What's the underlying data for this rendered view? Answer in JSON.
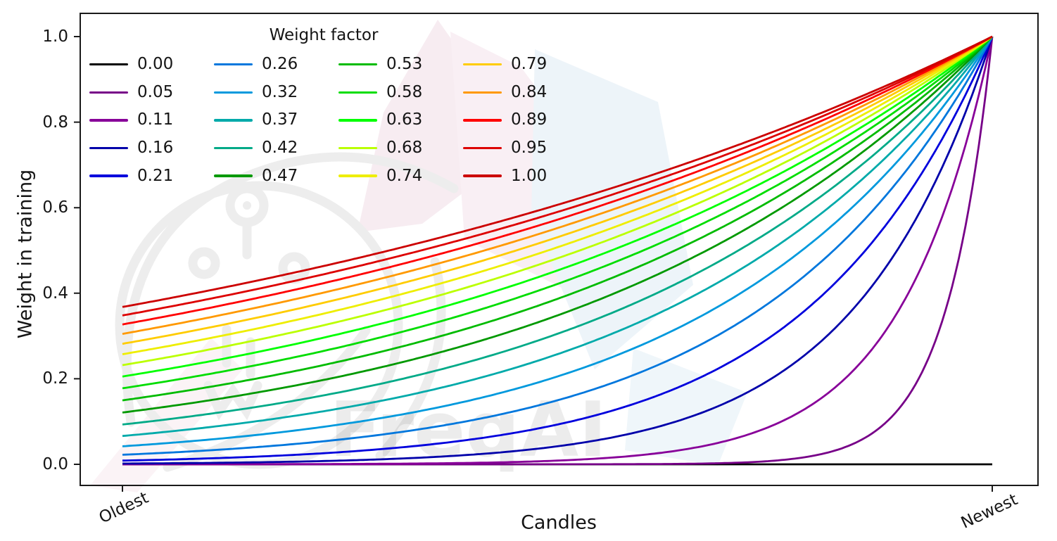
{
  "watermark": {
    "text": "FreqAI"
  },
  "chart_data": {
    "type": "line",
    "title": "",
    "legend_title": "Weight factor",
    "legend_position": "upper left",
    "legend_columns": 4,
    "grid": false,
    "colormap": "nipy_spectral",
    "xlabel": "Candles",
    "ylabel": "Weight in training",
    "x_tick_labels": [
      "Oldest",
      "Newest"
    ],
    "y_ticks": [
      0.0,
      0.2,
      0.4,
      0.6,
      0.8,
      1.0
    ],
    "ylim": [
      -0.05,
      1.05
    ],
    "x_range": [
      0,
      1
    ],
    "formula": "weight = exp(-(1 - x) / factor), x from 0 at Oldest candle to 1 at Newest candle",
    "x_samples": [
      0,
      0.25,
      0.5,
      0.75,
      1
    ],
    "series": [
      {
        "label": "0.00",
        "factor": 0.0,
        "color": "#000000",
        "y_samples": [
          0,
          0,
          0,
          0,
          0
        ]
      },
      {
        "label": "0.05",
        "factor": 0.0526,
        "color": "#770088",
        "y_samples": [
          0,
          0,
          0.0001,
          0.0087,
          1
        ]
      },
      {
        "label": "0.11",
        "factor": 0.1053,
        "color": "#880099",
        "y_samples": [
          0.0001,
          0.0008,
          0.0087,
          0.093,
          1
        ]
      },
      {
        "label": "0.16",
        "factor": 0.1579,
        "color": "#0000aa",
        "y_samples": [
          0.0018,
          0.0087,
          0.0421,
          0.2053,
          1
        ]
      },
      {
        "label": "0.21",
        "factor": 0.2105,
        "color": "#0000dd",
        "y_samples": [
          0.0087,
          0.0285,
          0.093,
          0.3047,
          1
        ]
      },
      {
        "label": "0.26",
        "factor": 0.2632,
        "color": "#0077dd",
        "y_samples": [
          0.0224,
          0.0578,
          0.1496,
          0.3867,
          1
        ]
      },
      {
        "label": "0.32",
        "factor": 0.3158,
        "color": "#0099dd",
        "y_samples": [
          0.0421,
          0.093,
          0.2053,
          0.4531,
          1
        ]
      },
      {
        "label": "0.37",
        "factor": 0.3684,
        "color": "#00aaaa",
        "y_samples": [
          0.0663,
          0.1306,
          0.2574,
          0.5073,
          1
        ]
      },
      {
        "label": "0.42",
        "factor": 0.4211,
        "color": "#00aa88",
        "y_samples": [
          0.093,
          0.1684,
          0.305,
          0.5522,
          1
        ]
      },
      {
        "label": "0.47",
        "factor": 0.4737,
        "color": "#009900",
        "y_samples": [
          0.1211,
          0.2053,
          0.348,
          0.5899,
          1
        ]
      },
      {
        "label": "0.53",
        "factor": 0.5263,
        "color": "#00bb00",
        "y_samples": [
          0.1496,
          0.2405,
          0.3867,
          0.6219,
          1
        ]
      },
      {
        "label": "0.58",
        "factor": 0.5789,
        "color": "#00dd00",
        "y_samples": [
          0.1778,
          0.2737,
          0.4216,
          0.6493,
          1
        ]
      },
      {
        "label": "0.63",
        "factor": 0.6316,
        "color": "#00ff00",
        "y_samples": [
          0.2053,
          0.305,
          0.4531,
          0.6732,
          1
        ]
      },
      {
        "label": "0.68",
        "factor": 0.6842,
        "color": "#bbff00",
        "y_samples": [
          0.2318,
          0.3341,
          0.4816,
          0.6939,
          1
        ]
      },
      {
        "label": "0.74",
        "factor": 0.7368,
        "color": "#eeee00",
        "y_samples": [
          0.2574,
          0.3613,
          0.5073,
          0.7123,
          1
        ]
      },
      {
        "label": "0.79",
        "factor": 0.7895,
        "color": "#ffcc00",
        "y_samples": [
          0.2817,
          0.3867,
          0.5308,
          0.7286,
          1
        ]
      },
      {
        "label": "0.84",
        "factor": 0.8421,
        "color": "#ff9900",
        "y_samples": [
          0.305,
          0.4104,
          0.5522,
          0.7431,
          1
        ]
      },
      {
        "label": "0.89",
        "factor": 0.8947,
        "color": "#ff0000",
        "y_samples": [
          0.3271,
          0.4325,
          0.5719,
          0.7562,
          1
        ]
      },
      {
        "label": "0.95",
        "factor": 0.9474,
        "color": "#dd0000",
        "y_samples": [
          0.348,
          0.4531,
          0.5899,
          0.7681,
          1
        ]
      },
      {
        "label": "1.00",
        "factor": 1.0,
        "color": "#cc0000",
        "y_samples": [
          0.3679,
          0.4724,
          0.6065,
          0.7788,
          1
        ]
      }
    ]
  }
}
